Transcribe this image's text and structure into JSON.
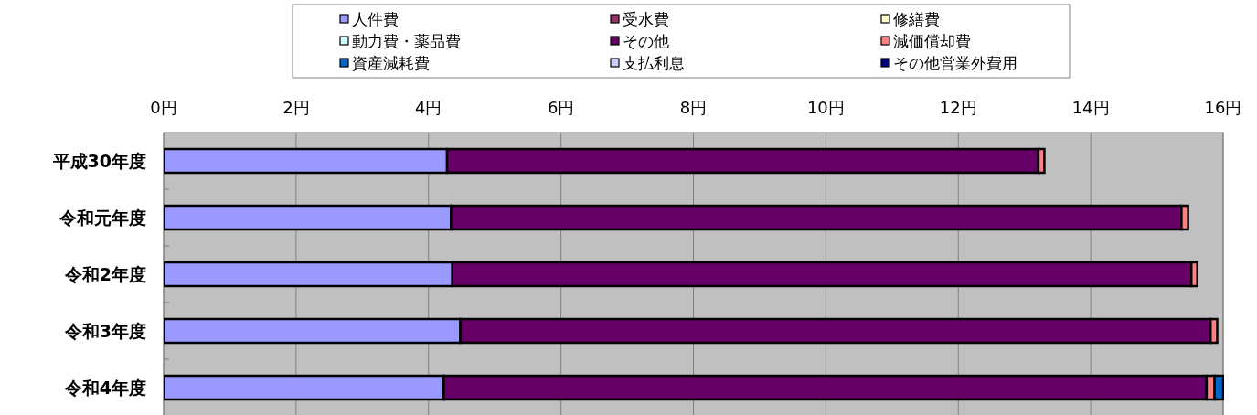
{
  "chart_data": {
    "type": "bar",
    "orientation": "horizontal",
    "stacked": true,
    "categories": [
      "平成30年度",
      "令和元年度",
      "令和2年度",
      "令和3年度",
      "令和4年度"
    ],
    "series": [
      {
        "name": "人件費",
        "color": "#9999ff",
        "values": [
          4.28,
          4.34,
          4.36,
          4.48,
          4.23
        ]
      },
      {
        "name": "受水費",
        "color": "#993366",
        "values": [
          0,
          0,
          0,
          0,
          0
        ]
      },
      {
        "name": "修繕費",
        "color": "#ffffcc",
        "values": [
          0,
          0,
          0,
          0,
          0
        ]
      },
      {
        "name": "動力費・薬品費",
        "color": "#ccffff",
        "values": [
          0,
          0,
          0,
          0,
          0
        ]
      },
      {
        "name": "その他",
        "color": "#660066",
        "values": [
          8.93,
          11.03,
          11.16,
          11.33,
          11.52
        ]
      },
      {
        "name": "減価償却費",
        "color": "#ff8080",
        "values": [
          0.09,
          0.1,
          0.09,
          0.1,
          0.12
        ]
      },
      {
        "name": "資産減耗費",
        "color": "#0066cc",
        "values": [
          0,
          0,
          0,
          0,
          0.13
        ]
      },
      {
        "name": "支払利息",
        "color": "#ccccff",
        "values": [
          0,
          0,
          0,
          0,
          0
        ]
      },
      {
        "name": "その他営業外費用",
        "color": "#000080",
        "values": [
          0,
          0,
          0,
          0,
          0
        ]
      }
    ],
    "xlim": [
      0,
      16
    ],
    "xticks": [
      {
        "value": 0,
        "label": "0円"
      },
      {
        "value": 2,
        "label": "2円"
      },
      {
        "value": 4,
        "label": "4円"
      },
      {
        "value": 6,
        "label": "6円"
      },
      {
        "value": 8,
        "label": "8円"
      },
      {
        "value": 10,
        "label": "10円"
      },
      {
        "value": 12,
        "label": "12円"
      },
      {
        "value": 14,
        "label": "14円"
      },
      {
        "value": 16,
        "label": "16円"
      }
    ],
    "grid": "x",
    "legend": "top"
  }
}
